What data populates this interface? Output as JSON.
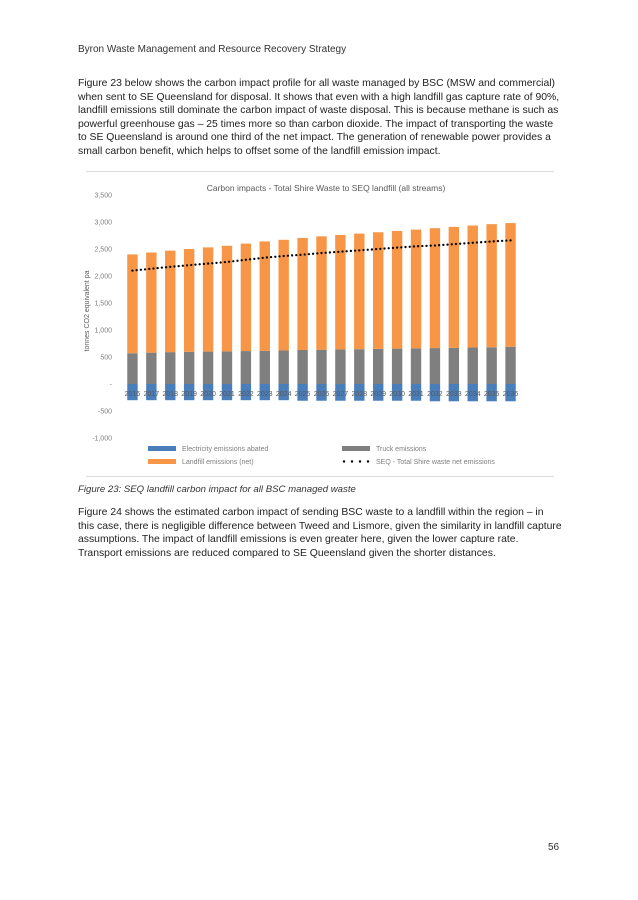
{
  "header": {
    "text": "Byron Waste Management and Resource Recovery Strategy"
  },
  "paragraphs": {
    "p1": "Figure 23 below shows the carbon impact profile for all waste managed by BSC (MSW and commercial) when sent to SE Queensland for disposal. It shows that even with a high landfill gas capture rate of 90%, landfill emissions still dominate the carbon impact of waste disposal. This is because methane is such as powerful greenhouse gas – 25 times more so than carbon dioxide. The impact of transporting the waste to SE Queensland is around one third of the net impact. The generation of renewable power provides a small carbon benefit, which helps to offset some of the landfill emission impact.",
    "p2": "Figure 24 shows the estimated carbon impact of sending BSC waste to a landfill within the region – in this case, there is negligible difference between Tweed and Lismore, given the similarity in landfill capture assumptions. The impact of landfill emissions is even greater here, given the lower capture rate. Transport emissions are reduced compared to SE Queensland given the shorter distances."
  },
  "caption": "Figure 23: SEQ landfill carbon impact for all BSC managed waste",
  "page_number": "56",
  "chart_data": {
    "type": "bar",
    "stacked": true,
    "title": "Carbon impacts - Total Shire Waste to SEQ landfill (all streams)",
    "ylabel": "tonnes CO2 equivalent pa",
    "xlabel": "",
    "ylim": [
      -1000,
      3500
    ],
    "yticks": [
      -1000,
      -500,
      0,
      500,
      1000,
      1500,
      2000,
      2500,
      3000,
      3500
    ],
    "ytick_labels": [
      "-1,000",
      "-500",
      "-",
      "500",
      "1,000",
      "1,500",
      "2,000",
      "2,500",
      "3,000",
      "3,500"
    ],
    "categories": [
      "2016",
      "2017",
      "2018",
      "2019",
      "2020",
      "2021",
      "2022",
      "2023",
      "2024",
      "2025",
      "2026",
      "2027",
      "2028",
      "2029",
      "2030",
      "2031",
      "2032",
      "2033",
      "2034",
      "2035",
      "2036"
    ],
    "series": [
      {
        "name": "Electricity emissions abated",
        "color": "#4a7ebb",
        "values": [
          -300,
          -300,
          -300,
          -300,
          -300,
          -300,
          -300,
          -300,
          -300,
          -310,
          -310,
          -310,
          -310,
          -310,
          -310,
          -310,
          -320,
          -320,
          -320,
          -320,
          -320
        ]
      },
      {
        "name": "Truck emissions",
        "color": "#7f7f7f",
        "values": [
          570,
          580,
          590,
          595,
          600,
          605,
          610,
          615,
          620,
          630,
          635,
          640,
          645,
          650,
          655,
          660,
          665,
          670,
          675,
          680,
          690
        ]
      },
      {
        "name": "Landfill emissions (net)",
        "color": "#f79646",
        "values": [
          1830,
          1855,
          1880,
          1905,
          1930,
          1955,
          1990,
          2025,
          2050,
          2075,
          2100,
          2120,
          2140,
          2160,
          2180,
          2200,
          2220,
          2240,
          2260,
          2280,
          2290
        ]
      },
      {
        "name": "SEQ - Total Shire waste net emissions",
        "color": "#000000",
        "kind": "dotted-line",
        "values": [
          2100,
          2135,
          2170,
          2200,
          2230,
          2260,
          2300,
          2340,
          2370,
          2395,
          2425,
          2450,
          2475,
          2500,
          2525,
          2550,
          2565,
          2590,
          2615,
          2640,
          2660
        ]
      }
    ],
    "legend_position": "bottom",
    "grid": false
  }
}
